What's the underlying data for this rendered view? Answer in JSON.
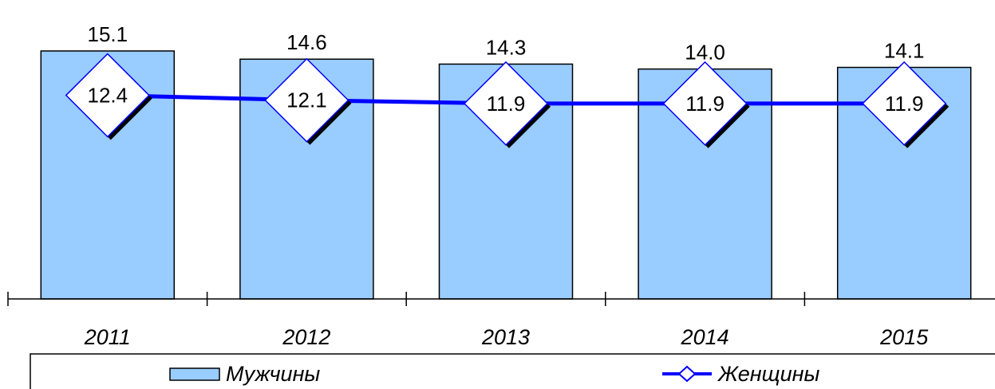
{
  "chart_data": {
    "type": "bar",
    "categories": [
      "2011",
      "2012",
      "2013",
      "2014",
      "2015"
    ],
    "series": [
      {
        "name": "Мужчины",
        "kind": "bar",
        "values": [
          15.1,
          14.6,
          14.3,
          14.0,
          14.1
        ],
        "color": "#99CCFF",
        "stroke": "#000000"
      },
      {
        "name": "Женщины",
        "kind": "line",
        "marker": "diamond",
        "values": [
          12.4,
          12.1,
          11.9,
          11.9,
          11.9
        ],
        "color": "#0000FF",
        "marker_fill": "#FFFFFF"
      }
    ],
    "title": "",
    "xlabel": "",
    "ylabel": "",
    "grid": false,
    "legend": "bottom"
  }
}
